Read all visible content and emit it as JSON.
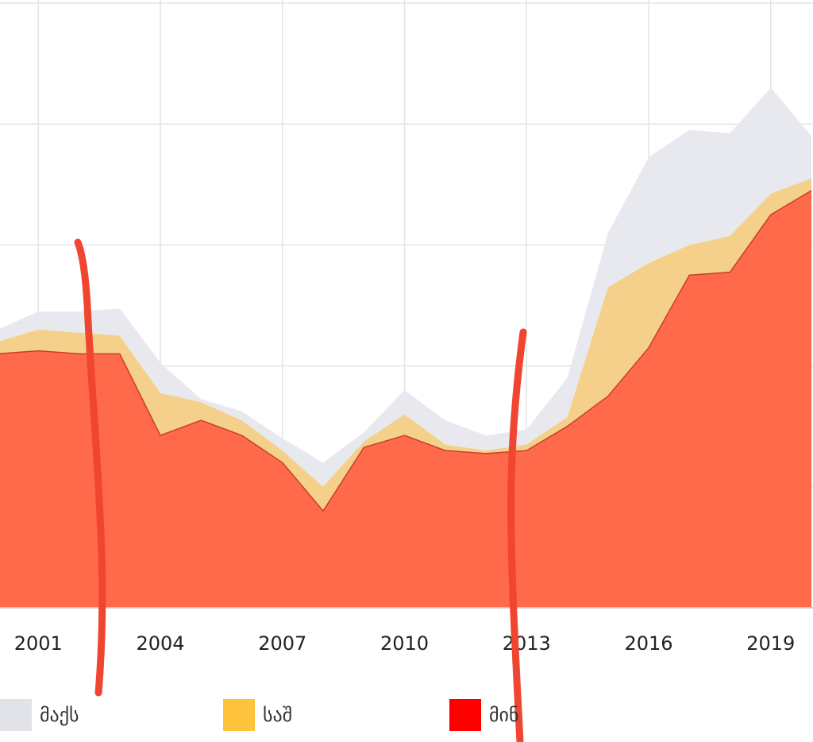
{
  "chart_data": {
    "type": "area",
    "stacked": true,
    "x": [
      2000,
      2001,
      2002,
      2003,
      2004,
      2005,
      2006,
      2007,
      2008,
      2009,
      2010,
      2011,
      2012,
      2013,
      2014,
      2015,
      2016,
      2017,
      2018,
      2019,
      2020
    ],
    "xticks": [
      2001,
      2004,
      2007,
      2010,
      2013,
      2016,
      2019
    ],
    "xtick_labels": [
      "2001",
      "2004",
      "2007",
      "2010",
      "2013",
      "2016",
      "2019"
    ],
    "xlim": [
      2000,
      2020
    ],
    "ylim": [
      0,
      100
    ],
    "grid": true,
    "legend_position": "bottom",
    "title": "",
    "xlabel": "",
    "ylabel": "",
    "series": [
      {
        "name": "მინ",
        "color": "#ff6a4a",
        "legend_color": "#ff0000",
        "values": [
          42,
          42.5,
          42,
          42,
          28.5,
          31,
          28.5,
          24,
          16,
          26.5,
          28.5,
          26,
          25.5,
          26,
          30,
          35,
          43,
          55,
          55.5,
          65,
          69
        ]
      },
      {
        "name": "საშ",
        "color": "#f5d08a",
        "legend_color": "#ffc23c",
        "values": [
          2,
          3.5,
          3.5,
          3,
          7,
          3,
          2.5,
          2,
          4,
          1,
          3.5,
          1,
          0.5,
          1,
          1.5,
          18,
          14,
          5,
          6,
          3.5,
          2
        ]
      },
      {
        "name": "მაქს",
        "color": "#e7e9ee",
        "legend_color": "#e1e3e8",
        "values": [
          2,
          3,
          3.5,
          4.5,
          5,
          0.5,
          1.5,
          2,
          4,
          1.5,
          4,
          4,
          2.5,
          2.5,
          6.5,
          9,
          17.5,
          19,
          17,
          17.5,
          7
        ]
      }
    ]
  },
  "legend": {
    "items": [
      {
        "label": "მაქს",
        "color": "#e1e3e8"
      },
      {
        "label": "საშ",
        "color": "#ffc23c"
      },
      {
        "label": "მინ",
        "color": "#ff0000"
      }
    ]
  },
  "annotations": {
    "stroke_color": "#f04530"
  }
}
